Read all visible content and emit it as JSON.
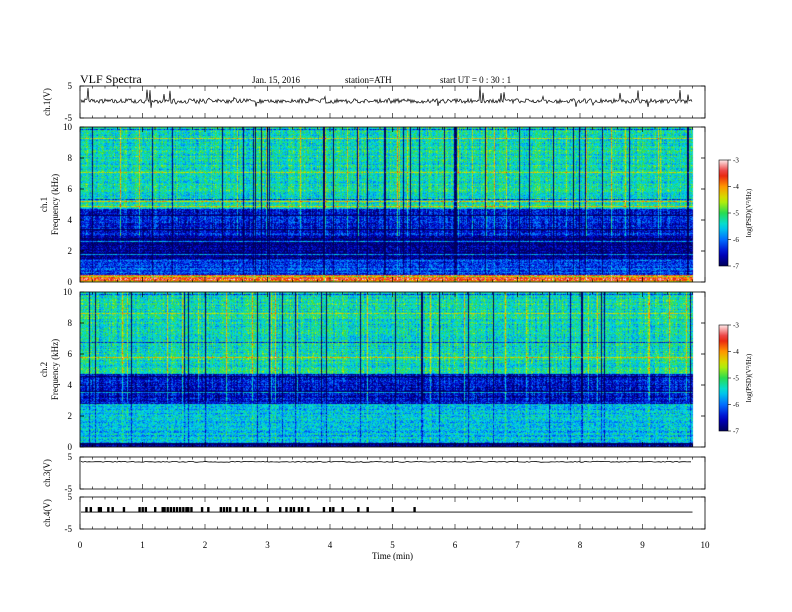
{
  "header": {
    "title": "VLF  Spectra",
    "date": "Jan. 15, 2016",
    "station": "station=ATH",
    "start": "start  UT  =   0 : 30 : 1"
  },
  "chart_data": [
    {
      "type": "line",
      "panel": "ch1-waveform",
      "ylabel": "ch.1(V)",
      "ylim": [
        -5,
        5
      ],
      "yticks": [
        "5",
        "-5"
      ],
      "baseline_v": 0.3,
      "x_range_min": [
        0,
        9.8
      ]
    },
    {
      "type": "heatmap",
      "panel": "ch1-spectrogram",
      "ylabel_channel": "ch.1",
      "ylabel": "Frequency  (kHz)",
      "ylim": [
        0,
        10
      ],
      "yticks": [
        "0",
        "2",
        "4",
        "6",
        "8",
        "10"
      ],
      "x_range_min": [
        0,
        9.8
      ],
      "colorbar": {
        "label": "log(PSD)(V²/Hz)",
        "range": [
          -7,
          -3
        ],
        "ticks": [
          "-3",
          "-4",
          "-5",
          "-6",
          "-7"
        ]
      },
      "bands": [
        {
          "f_khz": [
            0,
            0.5
          ],
          "log_psd": -3.6
        },
        {
          "f_khz": [
            0.5,
            1.5
          ],
          "log_psd": -6.2
        },
        {
          "f_khz": [
            1.5,
            3.0
          ],
          "log_psd": -6.8
        },
        {
          "f_khz": [
            3.0,
            4.8
          ],
          "log_psd": -6.4
        },
        {
          "f_khz": [
            4.8,
            10
          ],
          "log_psd": -5.3
        }
      ]
    },
    {
      "type": "heatmap",
      "panel": "ch2-spectrogram",
      "ylabel_channel": "ch.2",
      "ylabel": "Frequency  (kHz)",
      "ylim": [
        0,
        10
      ],
      "yticks": [
        "0",
        "2",
        "4",
        "6",
        "8",
        "10"
      ],
      "x_range_min": [
        0,
        9.8
      ],
      "colorbar": {
        "label": "log(PSD)(V²/Hz)",
        "range": [
          -7,
          -3
        ],
        "ticks": [
          "-3",
          "-4",
          "-5",
          "-6",
          "-7"
        ]
      },
      "bands": [
        {
          "f_khz": [
            0,
            0.3
          ],
          "log_psd": -6.9
        },
        {
          "f_khz": [
            0.3,
            2.8
          ],
          "log_psd": -5.6
        },
        {
          "f_khz": [
            2.8,
            4.8
          ],
          "log_psd": -6.5
        },
        {
          "f_khz": [
            4.8,
            10
          ],
          "log_psd": -5.3
        }
      ]
    },
    {
      "type": "line",
      "panel": "ch3-waveform",
      "ylabel": "ch.3(V)",
      "ylim": [
        -5,
        5
      ],
      "yticks": [
        "5",
        "-5"
      ],
      "baseline_v": 3.5,
      "x_range_min": [
        0,
        9.8
      ]
    },
    {
      "type": "line",
      "panel": "ch4-waveform",
      "ylabel": "ch.4(V)",
      "ylim": [
        -5,
        5
      ],
      "yticks": [
        "5",
        "-5"
      ],
      "baseline_v": 0.3,
      "x_range_min": [
        0,
        9.8
      ],
      "pulse_times_min": [
        0.1,
        0.17,
        0.3,
        0.33,
        0.45,
        0.52,
        0.7,
        0.95,
        1.0,
        1.05,
        1.2,
        1.32,
        1.35,
        1.4,
        1.45,
        1.5,
        1.55,
        1.6,
        1.65,
        1.7,
        1.73,
        1.78,
        1.95,
        2.05,
        2.25,
        2.3,
        2.35,
        2.4,
        2.5,
        2.62,
        2.68,
        2.8,
        3.0,
        3.2,
        3.3,
        3.37,
        3.42,
        3.5,
        3.55,
        3.65,
        3.9,
        4.0,
        4.05,
        4.2,
        4.45,
        4.6,
        5.0,
        5.35
      ]
    },
    {
      "type": "axis",
      "panel": "time-axis",
      "xlabel": "Time  (min)",
      "xlim": [
        0,
        10
      ],
      "xticks": [
        "0",
        "1",
        "2",
        "3",
        "4",
        "5",
        "6",
        "7",
        "8",
        "9",
        "10"
      ]
    }
  ]
}
